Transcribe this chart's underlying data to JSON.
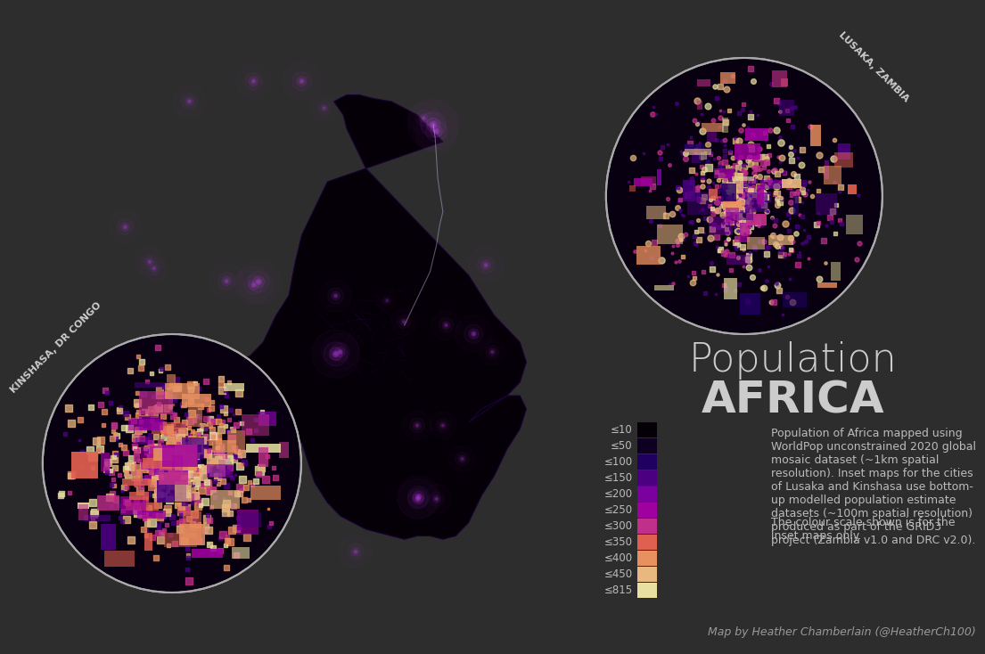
{
  "background_color": "#2d2d2d",
  "title_line1": "Population",
  "title_line2": "AFRICA",
  "title_color": "#cccccc",
  "title_fontsize1": 32,
  "title_fontsize2": 36,
  "subtitle_color": "#bbbbbb",
  "legend_labels": [
    "≤10",
    "≤50",
    "≤100",
    "≤150",
    "≤200",
    "≤250",
    "≤300",
    "≤350",
    "≤400",
    "≤450",
    "≤815"
  ],
  "legend_colors": [
    "#050005",
    "#0d0020",
    "#200060",
    "#4b0082",
    "#7b00a0",
    "#a000a0",
    "#c0308a",
    "#e06050",
    "#e89060",
    "#e8b880",
    "#e8e0a0"
  ],
  "description_text": "Population of Africa mapped using\nWorldPop unconstrained 2020 global\nmosaic dataset (~1km spatial\nresolution). Inset maps for the cities\nof Lusaka and Kinshasa use bottom-\nup modelled population estimate\ndatasets (~100m spatial resolution)\nproduced as part of the GRID3\nproject (Zambia v1.0 and DRC v2.0).",
  "description_text2": "The colour scale shown is for the\ninset maps only.",
  "description_color": "#bbbbbb",
  "description_fontsize": 9,
  "attribution": "Map by Heather Chamberlain (@HeatherCh100)",
  "attribution_color": "#999999",
  "attribution_fontsize": 9,
  "inset1_label": "LUSAKA, ZAMBIA",
  "inset2_label": "KINSHASA, DR CONGO",
  "inset_label_color": "#cccccc",
  "inset_circle_color": "#aaaaaa",
  "africa_color": "#1a0030",
  "africa_glow_color": "#8800aa"
}
